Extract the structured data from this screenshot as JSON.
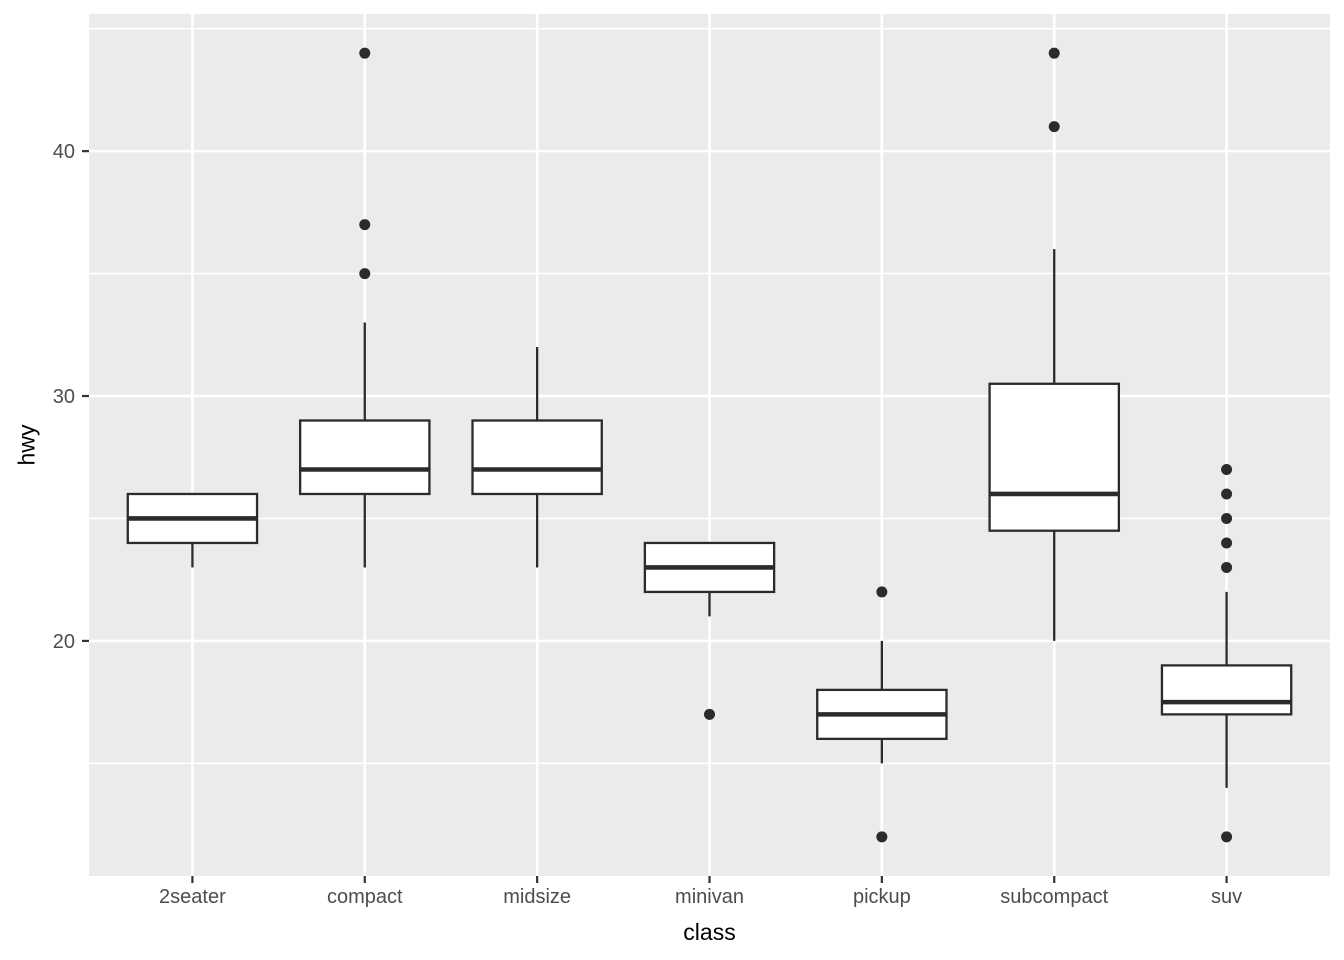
{
  "figure": {
    "xlabel": "class",
    "ylabel": "hwy"
  },
  "chart_data": {
    "type": "boxplot",
    "title": "",
    "xlabel": "class",
    "ylabel": "hwy",
    "categories": [
      "2seater",
      "compact",
      "midsize",
      "minivan",
      "pickup",
      "subcompact",
      "suv"
    ],
    "series": [
      {
        "category": "2seater",
        "whisker_low": 23,
        "q1": 24,
        "median": 25,
        "q3": 26,
        "whisker_high": 26,
        "outliers": []
      },
      {
        "category": "compact",
        "whisker_low": 23,
        "q1": 26,
        "median": 27,
        "q3": 29,
        "whisker_high": 33,
        "outliers": [
          35,
          37,
          44
        ]
      },
      {
        "category": "midsize",
        "whisker_low": 23,
        "q1": 26,
        "median": 27,
        "q3": 29,
        "whisker_high": 32,
        "outliers": []
      },
      {
        "category": "minivan",
        "whisker_low": 21,
        "q1": 22,
        "median": 23,
        "q3": 24,
        "whisker_high": 24,
        "outliers": [
          17
        ]
      },
      {
        "category": "pickup",
        "whisker_low": 15,
        "q1": 16,
        "median": 17,
        "q3": 18,
        "whisker_high": 20,
        "outliers": [
          12,
          22
        ]
      },
      {
        "category": "subcompact",
        "whisker_low": 20,
        "q1": 24.5,
        "median": 26,
        "q3": 30.5,
        "whisker_high": 36,
        "outliers": [
          41,
          44
        ]
      },
      {
        "category": "suv",
        "whisker_low": 14,
        "q1": 17,
        "median": 17.5,
        "q3": 19,
        "whisker_high": 22,
        "outliers": [
          12,
          23,
          24,
          25,
          26,
          27
        ]
      }
    ],
    "y_axis": {
      "ticks": [
        20,
        30,
        40
      ],
      "minor_ticks": [
        15,
        25,
        35,
        45
      ],
      "range": [
        10.4,
        45.6
      ]
    },
    "legend": "none",
    "grid": "on",
    "style": {
      "panel_bg": "#EBEBEB",
      "grid_color": "#FFFFFF",
      "box_fill": "#FFFFFF",
      "box_stroke": "#2B2B2B",
      "outlier_color": "#2B2B2B",
      "tick_mark_color": "#333333",
      "tick_label_color": "#4D4D4D",
      "axis_title_color": "#000000"
    }
  }
}
